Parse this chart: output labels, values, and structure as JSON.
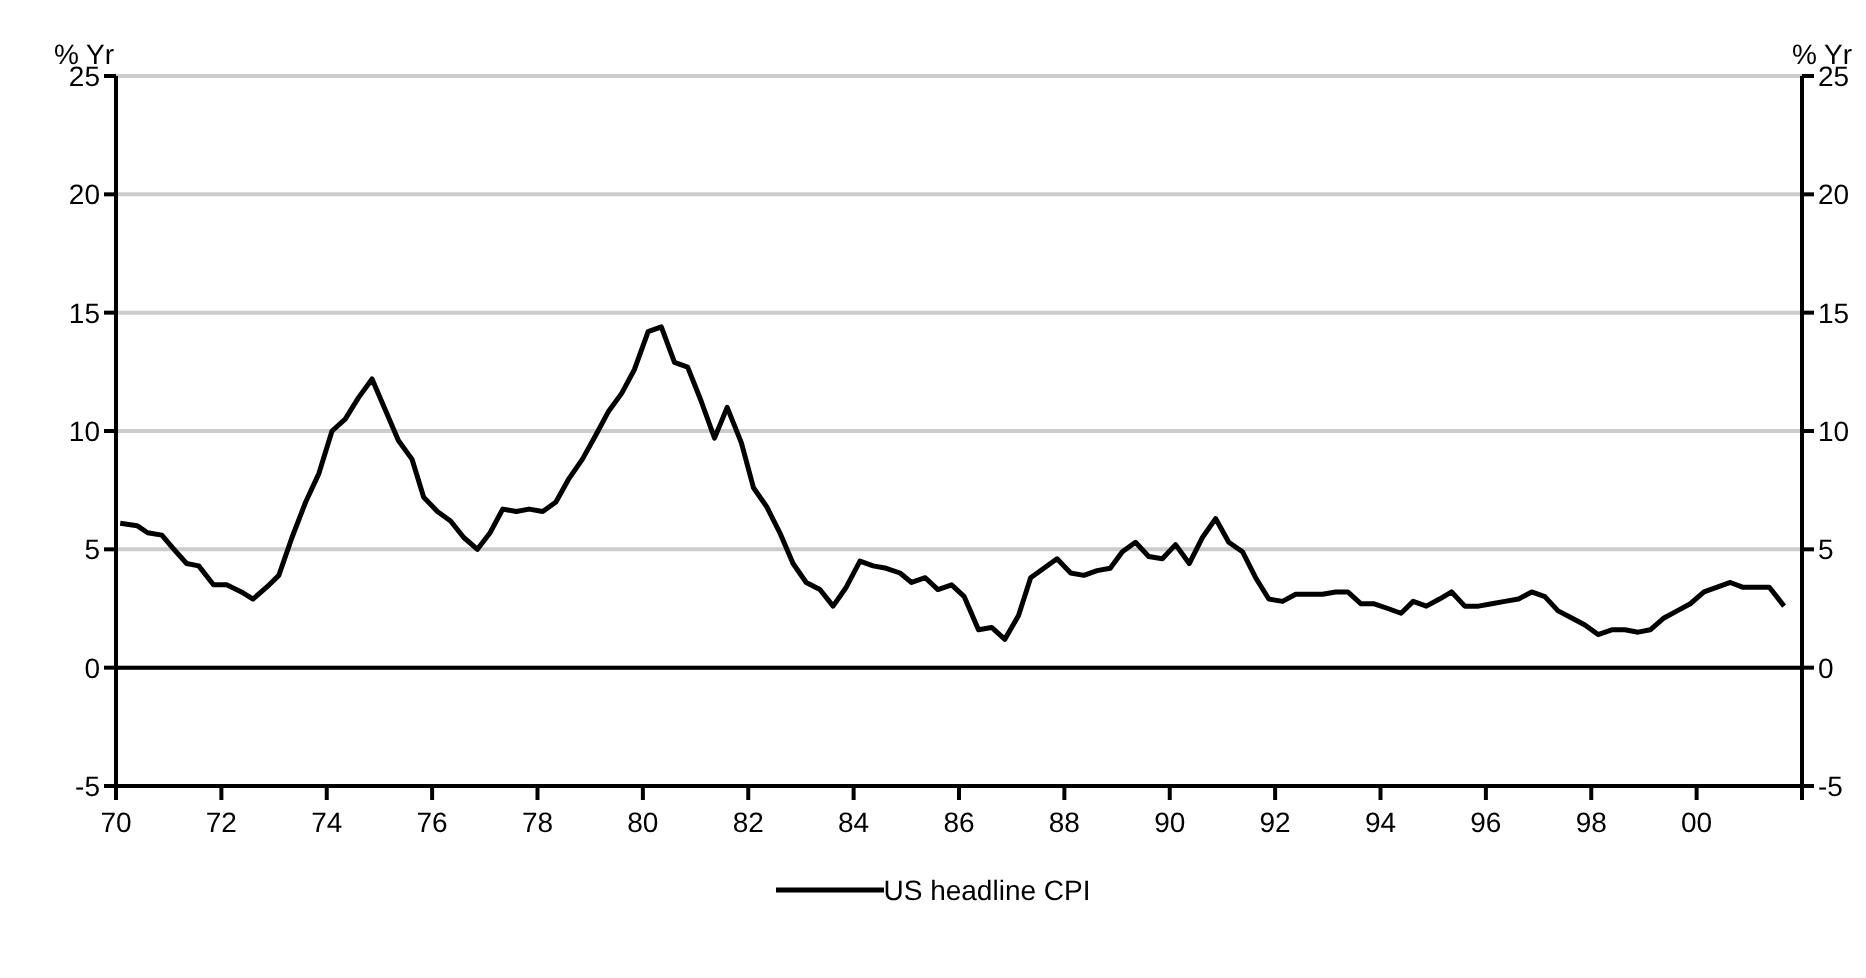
{
  "chart_data": {
    "type": "line",
    "ylabel": "% Yr",
    "y2label": "% Yr",
    "xlim": [
      1970,
      2002
    ],
    "xticks": [
      {
        "value": 1970,
        "label": "70"
      },
      {
        "value": 1972,
        "label": "72"
      },
      {
        "value": 1974,
        "label": "74"
      },
      {
        "value": 1976,
        "label": "76"
      },
      {
        "value": 1978,
        "label": "78"
      },
      {
        "value": 1980,
        "label": "80"
      },
      {
        "value": 1982,
        "label": "82"
      },
      {
        "value": 1984,
        "label": "84"
      },
      {
        "value": 1986,
        "label": "86"
      },
      {
        "value": 1988,
        "label": "88"
      },
      {
        "value": 1990,
        "label": "90"
      },
      {
        "value": 1992,
        "label": "92"
      },
      {
        "value": 1994,
        "label": "94"
      },
      {
        "value": 1996,
        "label": "96"
      },
      {
        "value": 1998,
        "label": "98"
      },
      {
        "value": 2000,
        "label": "00"
      },
      {
        "value": 2002,
        "label": null
      }
    ],
    "ylim": [
      -5,
      25
    ],
    "yticks": [
      -5,
      0,
      5,
      10,
      15,
      20,
      25
    ],
    "y2lim": [
      -5,
      25
    ],
    "y2ticks": [
      -5,
      0,
      5,
      10,
      15,
      20,
      25
    ],
    "grid": "y",
    "legend": "bottom",
    "marker": "none",
    "line_style": "solid",
    "ref_lines": [
      {
        "axis": "y",
        "value": 0,
        "color": "#000000"
      }
    ],
    "x": [
      1970.08,
      1970.4,
      1970.6,
      1970.87,
      1971.1,
      1971.34,
      1971.57,
      1971.85,
      1972.1,
      1972.38,
      1972.6,
      1972.86,
      1973.09,
      1973.34,
      1973.6,
      1973.85,
      1974.1,
      1974.35,
      1974.6,
      1974.86,
      1975.11,
      1975.36,
      1975.62,
      1975.84,
      1976.1,
      1976.35,
      1976.6,
      1976.86,
      1977.1,
      1977.34,
      1977.6,
      1977.84,
      1978.1,
      1978.35,
      1978.6,
      1978.85,
      1979.1,
      1979.34,
      1979.6,
      1979.84,
      1980.1,
      1980.35,
      1980.6,
      1980.85,
      1981.1,
      1981.36,
      1981.6,
      1981.87,
      1982.1,
      1982.35,
      1982.6,
      1982.85,
      1983.1,
      1983.36,
      1983.61,
      1983.86,
      1984.12,
      1984.37,
      1984.62,
      1984.88,
      1985.1,
      1985.36,
      1985.6,
      1985.86,
      1986.1,
      1986.37,
      1986.62,
      1986.87,
      1987.13,
      1987.36,
      1987.61,
      1987.86,
      1988.12,
      1988.37,
      1988.62,
      1988.87,
      1989.1,
      1989.35,
      1989.6,
      1989.86,
      1990.11,
      1990.37,
      1990.62,
      1990.87,
      1991.12,
      1991.38,
      1991.63,
      1991.88,
      1992.14,
      1992.39,
      1992.64,
      1992.9,
      1993.15,
      1993.38,
      1993.63,
      1993.88,
      1994.14,
      1994.39,
      1994.62,
      1994.87,
      1995.12,
      1995.35,
      1995.6,
      1995.86,
      1996.11,
      1996.36,
      1996.62,
      1996.87,
      1997.12,
      1997.37,
      1997.63,
      1997.88,
      1998.13,
      1998.39,
      1998.64,
      1998.89,
      1999.12,
      1999.38,
      1999.63,
      1999.88,
      2000.14,
      2000.39,
      2000.64,
      2000.87,
      2001.12,
      2001.38,
      2001.66
    ],
    "series": [
      {
        "name": "US headline CPI",
        "color": "#000000",
        "values": [
          6.1,
          6.0,
          5.7,
          5.6,
          5.0,
          4.4,
          4.3,
          3.5,
          3.5,
          3.2,
          2.9,
          3.4,
          3.9,
          5.5,
          7.0,
          8.2,
          10.0,
          10.5,
          11.4,
          12.2,
          10.9,
          9.6,
          8.8,
          7.2,
          6.6,
          6.2,
          5.5,
          5.0,
          5.7,
          6.7,
          6.6,
          6.7,
          6.6,
          7.0,
          8.0,
          8.8,
          9.8,
          10.8,
          11.6,
          12.6,
          14.2,
          14.4,
          12.9,
          12.7,
          11.3,
          9.7,
          11.0,
          9.5,
          7.6,
          6.8,
          5.7,
          4.4,
          3.6,
          3.3,
          2.6,
          3.4,
          4.5,
          4.3,
          4.2,
          4.0,
          3.6,
          3.8,
          3.3,
          3.5,
          3.0,
          1.6,
          1.7,
          1.2,
          2.2,
          3.8,
          4.2,
          4.6,
          4.0,
          3.9,
          4.1,
          4.2,
          4.9,
          5.3,
          4.7,
          4.6,
          5.2,
          4.4,
          5.5,
          6.3,
          5.3,
          4.9,
          3.8,
          2.9,
          2.8,
          3.1,
          3.1,
          3.1,
          3.2,
          3.2,
          2.7,
          2.7,
          2.5,
          2.3,
          2.8,
          2.6,
          2.9,
          3.2,
          2.6,
          2.6,
          2.7,
          2.8,
          2.9,
          3.2,
          3.0,
          2.4,
          2.1,
          1.8,
          1.4,
          1.6,
          1.6,
          1.5,
          1.6,
          2.1,
          2.4,
          2.7,
          3.2,
          3.4,
          3.6,
          3.4,
          3.4,
          3.4,
          2.6
        ]
      }
    ]
  }
}
